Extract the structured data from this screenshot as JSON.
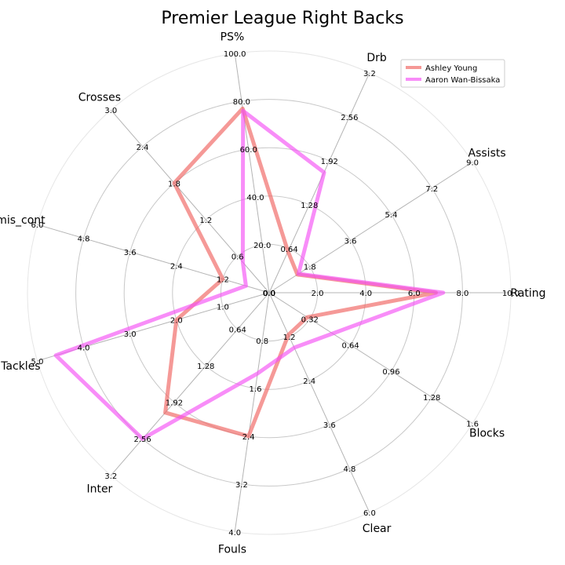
{
  "chart_data": {
    "type": "radar",
    "title": "Premier League Right Backs",
    "axes": [
      {
        "name": "Rating",
        "max": 10.0,
        "ticks": [
          "0.0",
          "2.0",
          "4.0",
          "6.0",
          "8.0",
          "10.0"
        ]
      },
      {
        "name": "Assists",
        "max": 9.0,
        "ticks": [
          "0.0",
          "1.8",
          "3.6",
          "5.4",
          "7.2",
          "9.0"
        ]
      },
      {
        "name": "Drb",
        "max": 3.2,
        "ticks": [
          "0.0",
          "0.64",
          "1.28",
          "1.92",
          "2.56",
          "3.2"
        ]
      },
      {
        "name": "PS%",
        "max": 100.0,
        "ticks": [
          "0.0",
          "20.0",
          "40.0",
          "60.0",
          "80.0",
          "100.0"
        ]
      },
      {
        "name": "Crosses",
        "max": 3.0,
        "ticks": [
          "0.0",
          "0.6",
          "1.2",
          "1.8",
          "2.4",
          "3.0"
        ]
      },
      {
        "name": "mis_cont",
        "max": 6.0,
        "ticks": [
          "0.0",
          "1.2",
          "2.4",
          "3.6",
          "4.8",
          "6.0"
        ]
      },
      {
        "name": "Tackles",
        "max": 5.0,
        "ticks": [
          "0.0",
          "1.0",
          "2.0",
          "3.0",
          "4.0",
          "5.0"
        ]
      },
      {
        "name": "Inter",
        "max": 3.2,
        "ticks": [
          "0.0",
          "0.64",
          "1.28",
          "1.92",
          "2.56",
          "3.2"
        ]
      },
      {
        "name": "Fouls",
        "max": 4.0,
        "ticks": [
          "0.0",
          "0.8",
          "1.6",
          "2.4",
          "3.2",
          "4.0"
        ]
      },
      {
        "name": "Clear",
        "max": 6.0,
        "ticks": [
          "0.0",
          "1.2",
          "2.4",
          "3.6",
          "4.8",
          "6.0"
        ]
      },
      {
        "name": "Blocks",
        "max": 1.6,
        "ticks": [
          "0.0",
          "0.32",
          "0.64",
          "0.96",
          "1.28",
          "1.6"
        ]
      }
    ],
    "series": [
      {
        "name": "Ashley Young",
        "color": "#f0625f",
        "values": [
          6.9,
          1.25,
          0.6,
          77.0,
          1.8,
          1.2,
          2.0,
          2.1,
          2.4,
          1.15,
          0.3
        ]
      },
      {
        "name": "Aaron Wan-Bissaka",
        "color": "#f550f5",
        "values": [
          7.2,
          1.3,
          1.75,
          76.0,
          0.5,
          0.6,
          4.6,
          2.56,
          1.35,
          1.5,
          0.5
        ]
      }
    ],
    "grid": true,
    "legend": "top-right"
  }
}
